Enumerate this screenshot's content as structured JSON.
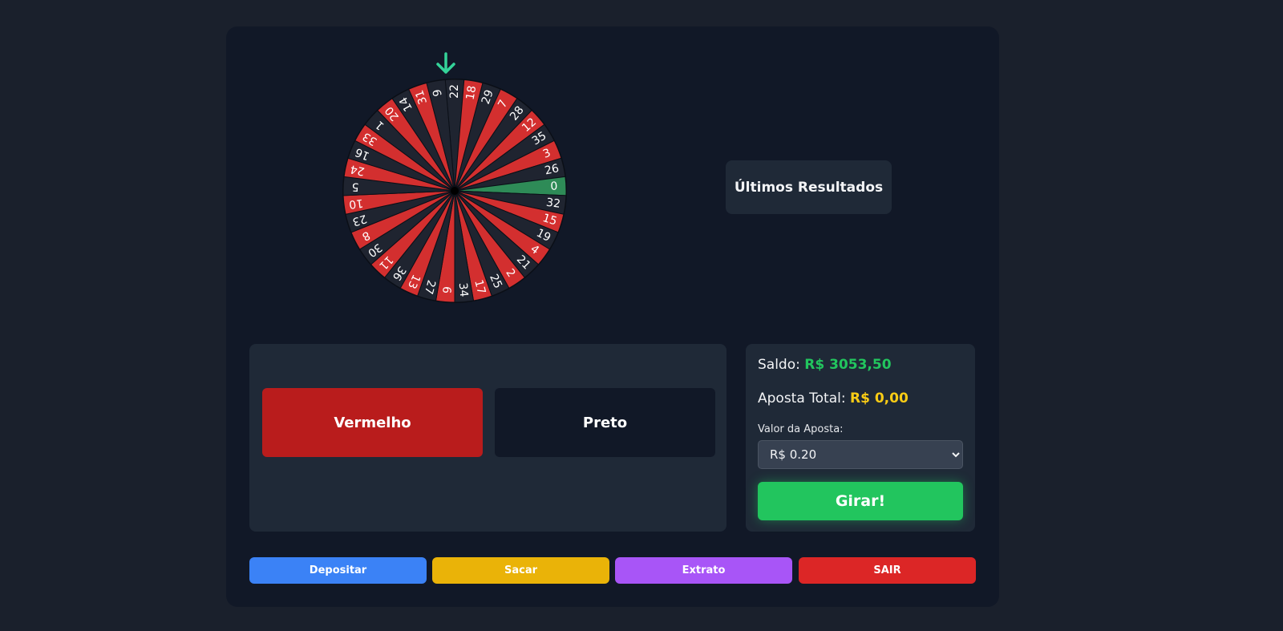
{
  "wheel": {
    "numbers": [
      22,
      18,
      29,
      7,
      28,
      12,
      35,
      3,
      26,
      0,
      32,
      15,
      19,
      4,
      21,
      2,
      25,
      17,
      34,
      6,
      27,
      13,
      36,
      11,
      30,
      8,
      23,
      10,
      5,
      24,
      16,
      33,
      1,
      20,
      14,
      31,
      9
    ],
    "colors": {
      "red": "#d32f2f",
      "black": "#1f2430",
      "green": "#2e8b57",
      "pointer": "#34d399"
    }
  },
  "results": {
    "title": "Últimos Resultados"
  },
  "bets": {
    "red_label": "Vermelho",
    "black_label": "Preto"
  },
  "side": {
    "balance_label": "Saldo:",
    "balance_value": "R$ 3053,50",
    "total_label": "Aposta Total:",
    "total_value": "R$ 0,00",
    "bet_value_label": "Valor da Aposta:",
    "bet_value_selected": "R$ 0.20",
    "spin_label": "Girar!"
  },
  "actions": {
    "deposit": "Depositar",
    "withdraw": "Sacar",
    "statement": "Extrato",
    "exit": "SAIR"
  }
}
